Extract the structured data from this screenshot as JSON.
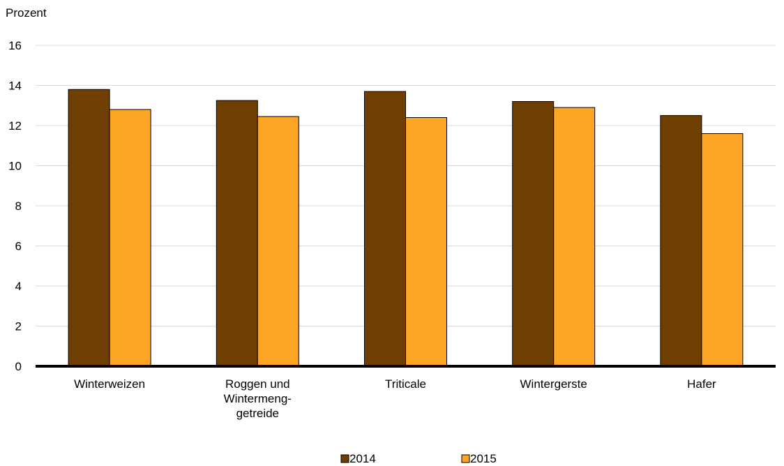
{
  "chart_data": {
    "type": "bar",
    "ylabel": "Prozent",
    "categories": [
      [
        "Winterweizen"
      ],
      [
        "Roggen und",
        "Wintermeng-",
        "getreide"
      ],
      [
        "Triticale"
      ],
      [
        "Wintergerste"
      ],
      [
        "Hafer"
      ]
    ],
    "series": [
      {
        "name": "2014",
        "color": "#6e3f00",
        "values": [
          13.8,
          13.25,
          13.7,
          13.2,
          12.5
        ]
      },
      {
        "name": "2015",
        "color": "#fca526",
        "values": [
          12.8,
          12.45,
          12.4,
          12.9,
          11.6
        ]
      }
    ],
    "ylim": [
      0,
      16
    ],
    "yticks": [
      0,
      2,
      4,
      6,
      8,
      10,
      12,
      14,
      16
    ],
    "grid": true,
    "legend": "bottom-center"
  }
}
